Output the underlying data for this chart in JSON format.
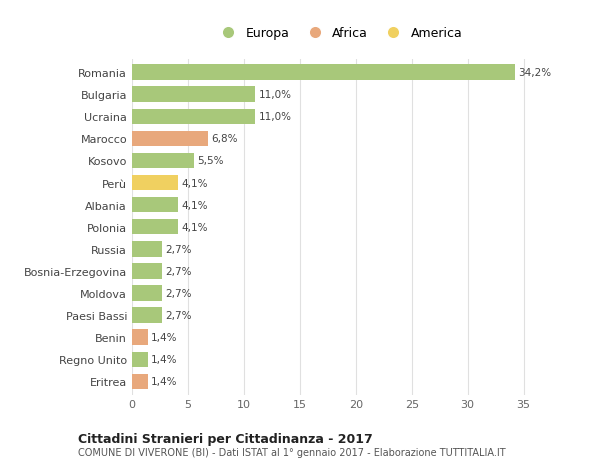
{
  "countries": [
    "Romania",
    "Bulgaria",
    "Ucraina",
    "Marocco",
    "Kosovo",
    "Perù",
    "Albania",
    "Polonia",
    "Russia",
    "Bosnia-Erzegovina",
    "Moldova",
    "Paesi Bassi",
    "Benin",
    "Regno Unito",
    "Eritrea"
  ],
  "values": [
    34.2,
    11.0,
    11.0,
    6.8,
    5.5,
    4.1,
    4.1,
    4.1,
    2.7,
    2.7,
    2.7,
    2.7,
    1.4,
    1.4,
    1.4
  ],
  "labels": [
    "34,2%",
    "11,0%",
    "11,0%",
    "6,8%",
    "5,5%",
    "4,1%",
    "4,1%",
    "4,1%",
    "2,7%",
    "2,7%",
    "2,7%",
    "2,7%",
    "1,4%",
    "1,4%",
    "1,4%"
  ],
  "continents": [
    "Europa",
    "Europa",
    "Europa",
    "Africa",
    "Europa",
    "America",
    "Europa",
    "Europa",
    "Europa",
    "Europa",
    "Europa",
    "Europa",
    "Africa",
    "Europa",
    "Africa"
  ],
  "colors": {
    "Europa": "#a8c87a",
    "Africa": "#e8a87c",
    "America": "#f0d060"
  },
  "title": "Cittadini Stranieri per Cittadinanza - 2017",
  "subtitle": "COMUNE DI VIVERONE (BI) - Dati ISTAT al 1° gennaio 2017 - Elaborazione TUTTITALIA.IT",
  "xlim": [
    0,
    37
  ],
  "xticks": [
    0,
    5,
    10,
    15,
    20,
    25,
    30,
    35
  ],
  "bg_color": "#ffffff",
  "grid_color": "#e0e0e0",
  "bar_height": 0.7
}
